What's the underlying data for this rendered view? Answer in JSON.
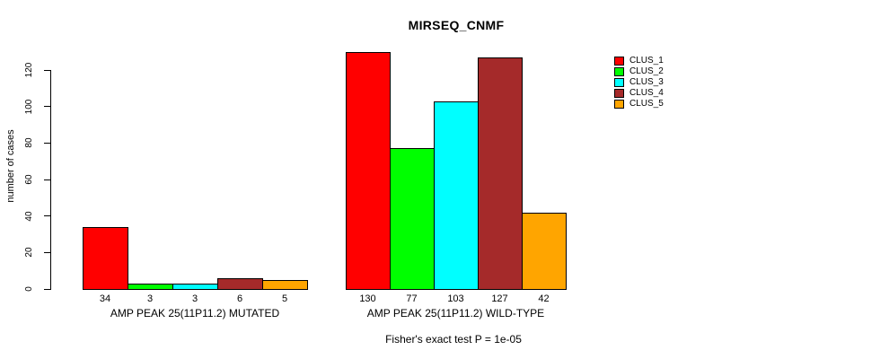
{
  "window": {
    "background": "#FFFFFF"
  },
  "chart_data": {
    "type": "bar",
    "title": "MIRSEQ_CNMF",
    "ylabel": "number of cases",
    "xlabel": "",
    "ylim": [
      0,
      130
    ],
    "yticks": [
      0,
      20,
      40,
      60,
      80,
      100,
      120
    ],
    "grid": false,
    "bar_value_labels_shown": true,
    "legend": {
      "position": "right",
      "entries": [
        {
          "label": "CLUS_1",
          "color": "#FF0000"
        },
        {
          "label": "CLUS_2",
          "color": "#00FF00"
        },
        {
          "label": "CLUS_3",
          "color": "#00FFFF"
        },
        {
          "label": "CLUS_4",
          "color": "#A52A2A"
        },
        {
          "label": "CLUS_5",
          "color": "#FFA500"
        }
      ]
    },
    "groups": [
      {
        "label": "AMP PEAK 25(11P11.2) MUTATED",
        "values": [
          34,
          3,
          3,
          6,
          5
        ]
      },
      {
        "label": "AMP PEAK 25(11P11.2) WILD-TYPE",
        "values": [
          130,
          77,
          103,
          127,
          42
        ]
      }
    ],
    "series": [
      {
        "name": "CLUS_1",
        "values": [
          34,
          130
        ]
      },
      {
        "name": "CLUS_2",
        "values": [
          3,
          77
        ]
      },
      {
        "name": "CLUS_3",
        "values": [
          3,
          103
        ]
      },
      {
        "name": "CLUS_4",
        "values": [
          6,
          127
        ]
      },
      {
        "name": "CLUS_5",
        "values": [
          5,
          42
        ]
      }
    ],
    "footnote": "Fisher's exact test P = 1e-05"
  }
}
